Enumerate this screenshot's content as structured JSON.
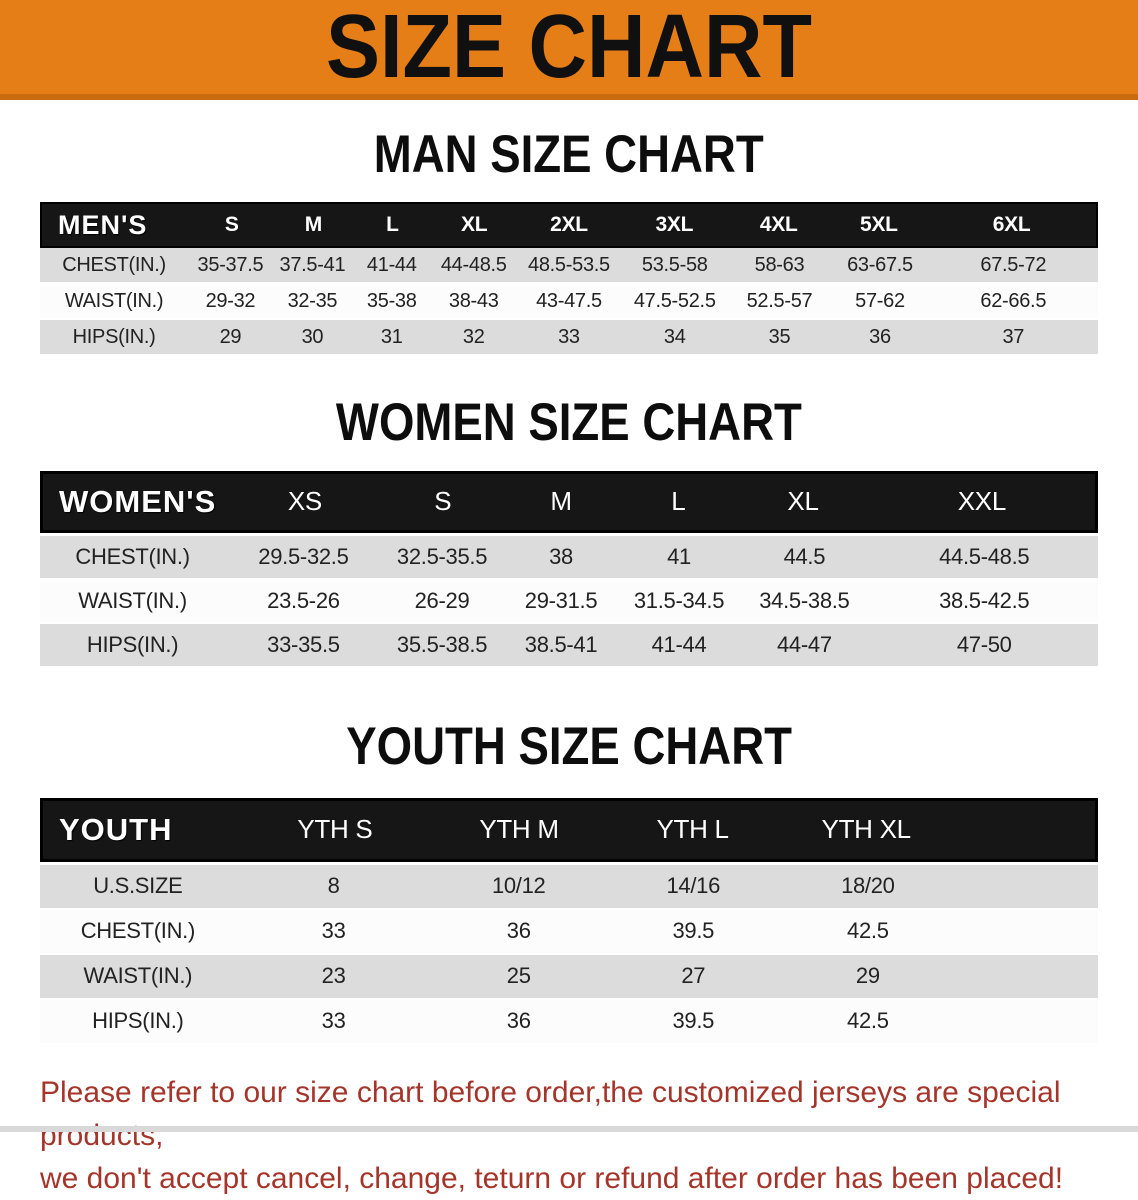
{
  "banner": {
    "title": "SIZE CHART"
  },
  "colors": {
    "banner_bg": "#E67E17",
    "banner_border": "#C96C10",
    "header_bar": "#161616",
    "row_gray": "#DCDCDC",
    "row_white": "#FCFCFC",
    "note_red": "#A5352B"
  },
  "tables": [
    {
      "id": "men",
      "heading": "MAN SIZE CHART",
      "label": "MEN'S",
      "columns": [
        "S",
        "M",
        "L",
        "XL",
        "2XL",
        "3XL",
        "4XL",
        "5XL",
        "6XL"
      ],
      "rows": [
        {
          "label": "CHEST(IN.)",
          "cells": [
            "35-37.5",
            "37.5-41",
            "41-44",
            "44-48.5",
            "48.5-53.5",
            "53.5-58",
            "58-63",
            "63-67.5",
            "67.5-72"
          ]
        },
        {
          "label": "WAIST(IN.)",
          "cells": [
            "29-32",
            "32-35",
            "35-38",
            "38-43",
            "43-47.5",
            "47.5-52.5",
            "52.5-57",
            "57-62",
            "62-66.5"
          ]
        },
        {
          "label": "HIPS(IN.)",
          "cells": [
            "29",
            "30",
            "31",
            "32",
            "33",
            "34",
            "35",
            "36",
            "37"
          ]
        }
      ]
    },
    {
      "id": "women",
      "heading": "WOMEN SIZE CHART",
      "label": "WOMEN'S",
      "columns": [
        "XS",
        "S",
        "M",
        "L",
        "XL",
        "XXL"
      ],
      "rows": [
        {
          "label": "CHEST(IN.)",
          "cells": [
            "29.5-32.5",
            "32.5-35.5",
            "38",
            "41",
            "44.5",
            "44.5-48.5"
          ]
        },
        {
          "label": "WAIST(IN.)",
          "cells": [
            "23.5-26",
            "26-29",
            "29-31.5",
            "31.5-34.5",
            "34.5-38.5",
            "38.5-42.5"
          ]
        },
        {
          "label": "HIPS(IN.)",
          "cells": [
            "33-35.5",
            "35.5-38.5",
            "38.5-41",
            "41-44",
            "44-47",
            "47-50"
          ]
        }
      ]
    },
    {
      "id": "youth",
      "heading": "YOUTH SIZE CHART",
      "label": "YOUTH",
      "columns": [
        "YTH S",
        "YTH M",
        "YTH L",
        "YTH XL"
      ],
      "rows": [
        {
          "label": "U.S.SIZE",
          "cells": [
            "8",
            "10/12",
            "14/16",
            "18/20"
          ]
        },
        {
          "label": "CHEST(IN.)",
          "cells": [
            "33",
            "36",
            "39.5",
            "42.5"
          ]
        },
        {
          "label": "WAIST(IN.)",
          "cells": [
            "23",
            "25",
            "27",
            "29"
          ]
        },
        {
          "label": "HIPS(IN.)",
          "cells": [
            "33",
            "36",
            "39.5",
            "42.5"
          ]
        }
      ]
    }
  ],
  "note": {
    "lines": [
      "Please refer to our size chart before order,the customized jerseys are special products,",
      "we don't accept cancel, change, teturn or refund after order has been placed!"
    ]
  }
}
